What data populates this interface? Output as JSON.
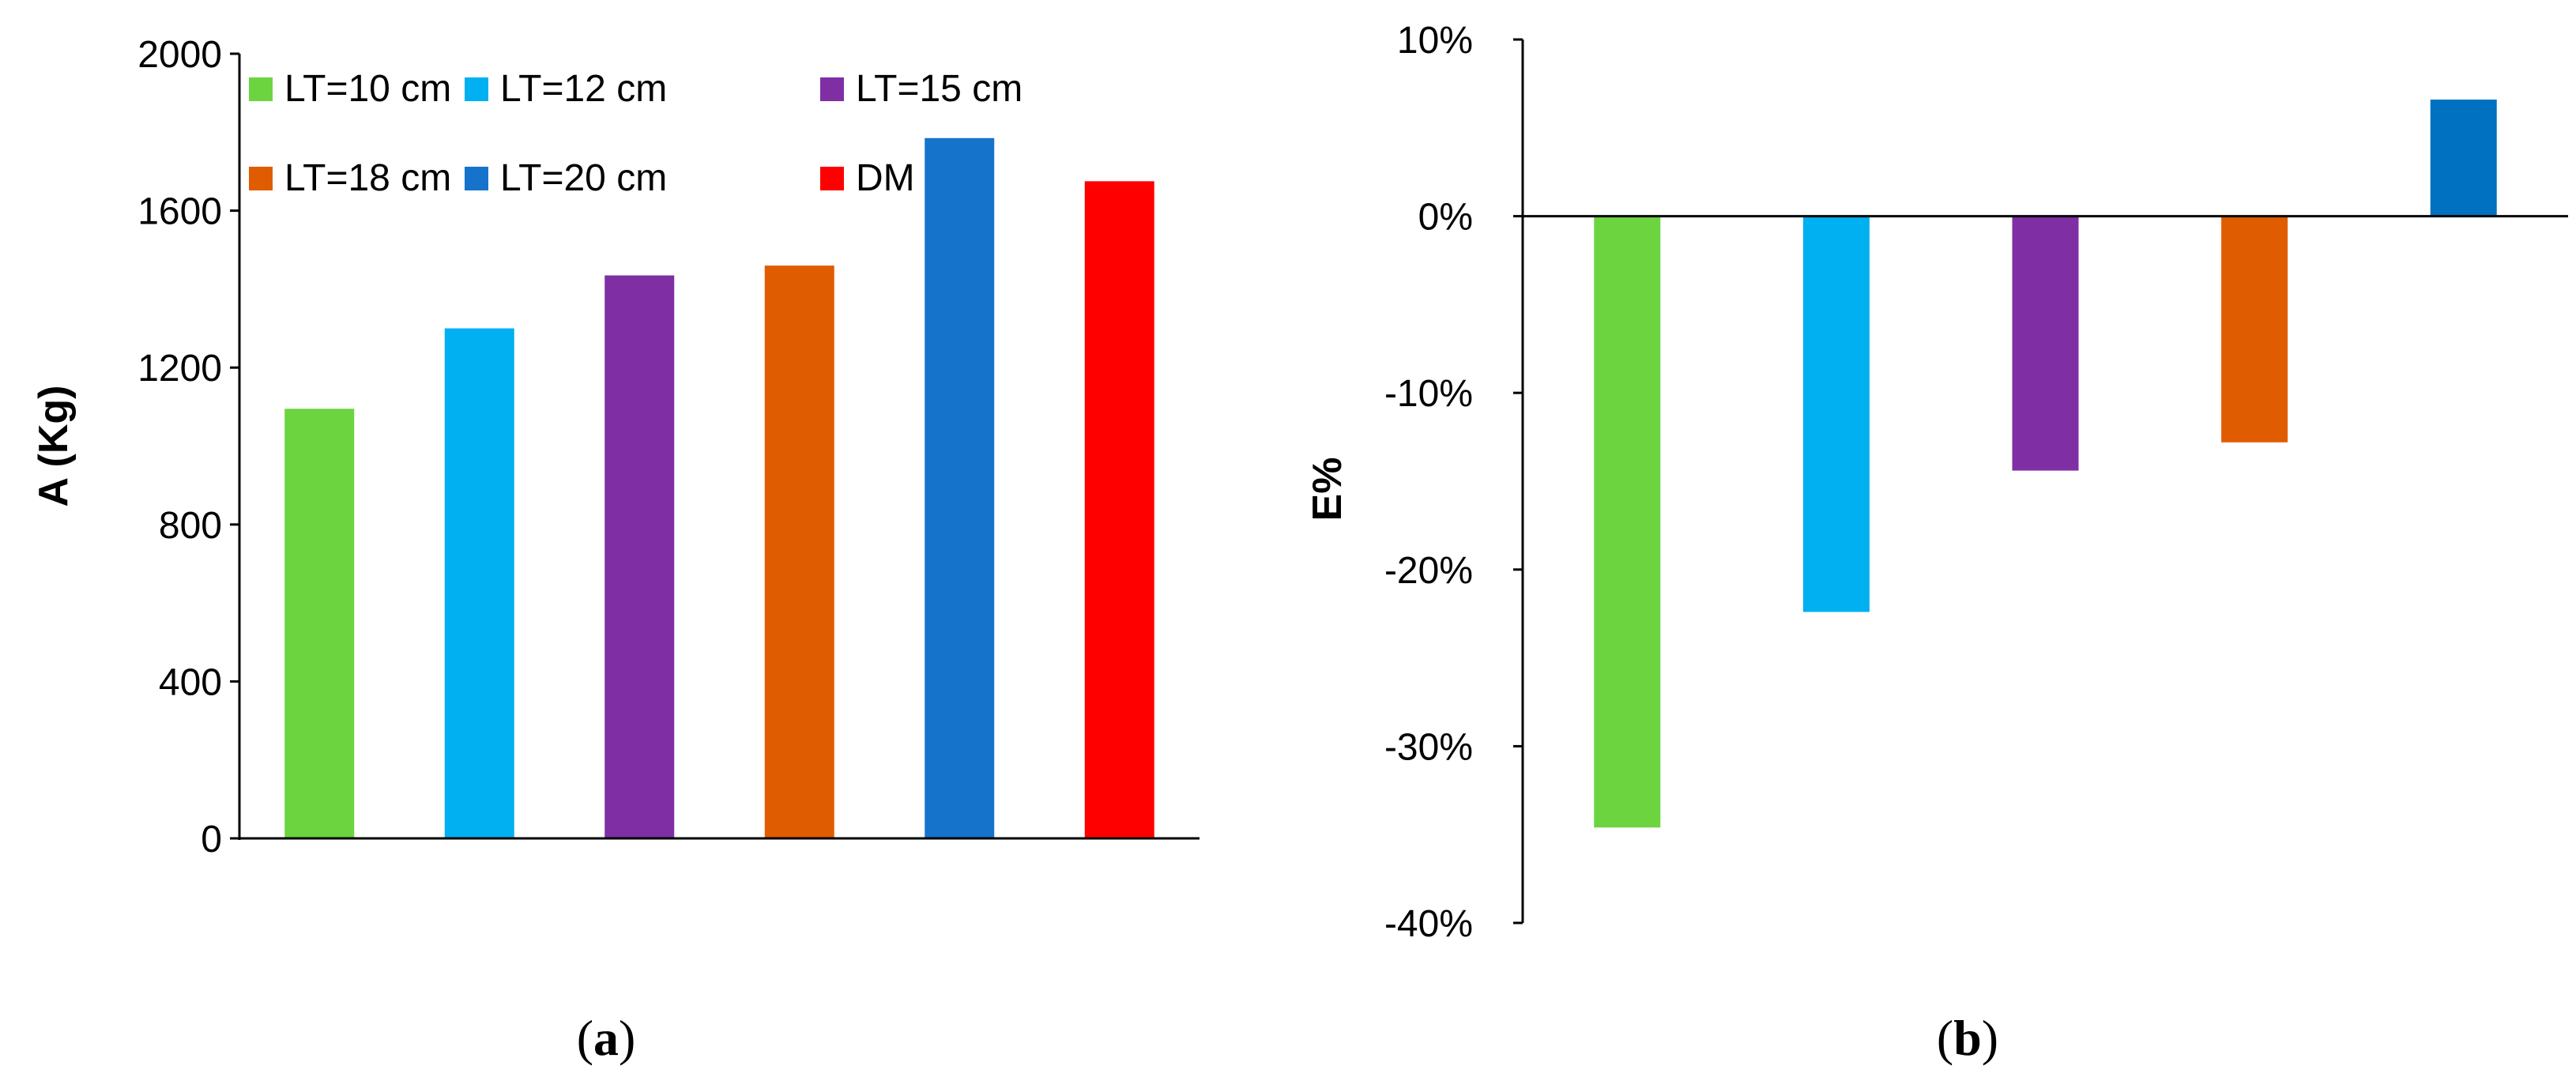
{
  "chart_data": [
    {
      "id": "a",
      "type": "bar",
      "caption": {
        "open": "(",
        "letter": "a",
        "close": ")"
      },
      "ylabel": "A (Kg)",
      "ylim": [
        0,
        2000
      ],
      "yticks": [
        "0",
        "400",
        "800",
        "1200",
        "1600",
        "2000"
      ],
      "categories": [
        "LT=10 cm",
        "LT=12 cm",
        "LT=15 cm",
        "LT=18 cm",
        "LT=20 cm",
        "DM"
      ],
      "values": [
        1095,
        1300,
        1435,
        1460,
        1785,
        1675
      ],
      "colors": [
        "#6CD43F",
        "#00B0F0",
        "#7F2FA3",
        "#E05C00",
        "#1673CC",
        "#FF0000"
      ],
      "legend": [
        "LT=10 cm",
        "LT=12 cm",
        "LT=15 cm",
        "LT=18 cm",
        "LT=20 cm",
        "DM"
      ],
      "legend_position": "top-left",
      "grid": false
    },
    {
      "id": "b",
      "type": "bar",
      "caption": {
        "open": "(",
        "letter": "b",
        "close": ")"
      },
      "ylabel": "E%",
      "ylim": [
        -40,
        10
      ],
      "yticks": [
        "10%",
        "0%",
        "-10%",
        "-20%",
        "-30%",
        "-40%"
      ],
      "categories": [
        "LT=10 cm",
        "LT=12 cm",
        "LT=15 cm",
        "LT=18 cm",
        "LT=20 cm"
      ],
      "values": [
        -34.6,
        -22.4,
        -14.4,
        -12.8,
        6.6
      ],
      "colors": [
        "#6CD43F",
        "#00B0F0",
        "#7F2FA3",
        "#E05C00",
        "#0070C0"
      ],
      "grid": false
    }
  ]
}
